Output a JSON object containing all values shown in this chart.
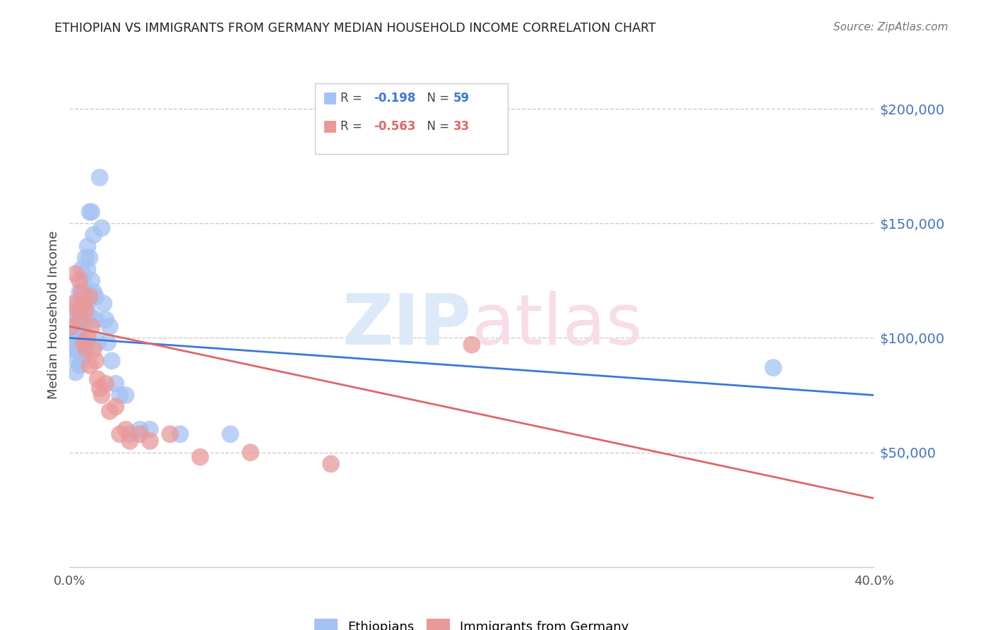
{
  "title": "ETHIOPIAN VS IMMIGRANTS FROM GERMANY MEDIAN HOUSEHOLD INCOME CORRELATION CHART",
  "source": "Source: ZipAtlas.com",
  "ylabel": "Median Household Income",
  "right_ytick_values": [
    50000,
    100000,
    150000,
    200000
  ],
  "right_ytick_labels": [
    "$50,000",
    "$100,000",
    "$150,000",
    "$200,000"
  ],
  "xlim": [
    0.0,
    0.4
  ],
  "ylim": [
    0,
    220000
  ],
  "blue_color": "#a4c2f4",
  "pink_color": "#ea9999",
  "blue_line_color": "#3c78d8",
  "pink_line_color": "#e06666",
  "title_color": "#212121",
  "source_color": "#757575",
  "axis_color": "#cccccc",
  "ytick_color": "#4472c4",
  "watermark_blue": "#dce9f8",
  "watermark_pink": "#f8dce9",
  "ethiopians_x": [
    0.001,
    0.002,
    0.002,
    0.003,
    0.003,
    0.003,
    0.003,
    0.004,
    0.004,
    0.004,
    0.004,
    0.005,
    0.005,
    0.005,
    0.005,
    0.005,
    0.006,
    0.006,
    0.006,
    0.006,
    0.006,
    0.007,
    0.007,
    0.007,
    0.007,
    0.007,
    0.008,
    0.008,
    0.008,
    0.008,
    0.009,
    0.009,
    0.009,
    0.01,
    0.01,
    0.01,
    0.011,
    0.011,
    0.012,
    0.012,
    0.013,
    0.013,
    0.014,
    0.015,
    0.016,
    0.017,
    0.018,
    0.019,
    0.02,
    0.021,
    0.023,
    0.025,
    0.028,
    0.03,
    0.035,
    0.04,
    0.055,
    0.08,
    0.35
  ],
  "ethiopians_y": [
    97000,
    100000,
    95000,
    102000,
    108000,
    95000,
    85000,
    115000,
    103000,
    97000,
    90000,
    120000,
    110000,
    105000,
    95000,
    88000,
    130000,
    118000,
    108000,
    98000,
    92000,
    125000,
    120000,
    115000,
    105000,
    95000,
    135000,
    120000,
    110000,
    98000,
    140000,
    130000,
    115000,
    155000,
    135000,
    110000,
    155000,
    125000,
    145000,
    120000,
    118000,
    108000,
    98000,
    170000,
    148000,
    115000,
    108000,
    98000,
    105000,
    90000,
    80000,
    75000,
    75000,
    58000,
    60000,
    60000,
    58000,
    58000,
    87000
  ],
  "germany_x": [
    0.001,
    0.002,
    0.003,
    0.004,
    0.005,
    0.005,
    0.006,
    0.007,
    0.007,
    0.008,
    0.008,
    0.009,
    0.01,
    0.01,
    0.011,
    0.012,
    0.013,
    0.014,
    0.015,
    0.016,
    0.018,
    0.02,
    0.023,
    0.025,
    0.028,
    0.03,
    0.035,
    0.04,
    0.05,
    0.065,
    0.09,
    0.13,
    0.2
  ],
  "germany_y": [
    105000,
    115000,
    128000,
    112000,
    125000,
    108000,
    120000,
    115000,
    98000,
    112000,
    95000,
    100000,
    118000,
    88000,
    105000,
    95000,
    90000,
    82000,
    78000,
    75000,
    80000,
    68000,
    70000,
    58000,
    60000,
    55000,
    58000,
    55000,
    58000,
    48000,
    50000,
    45000,
    97000
  ]
}
